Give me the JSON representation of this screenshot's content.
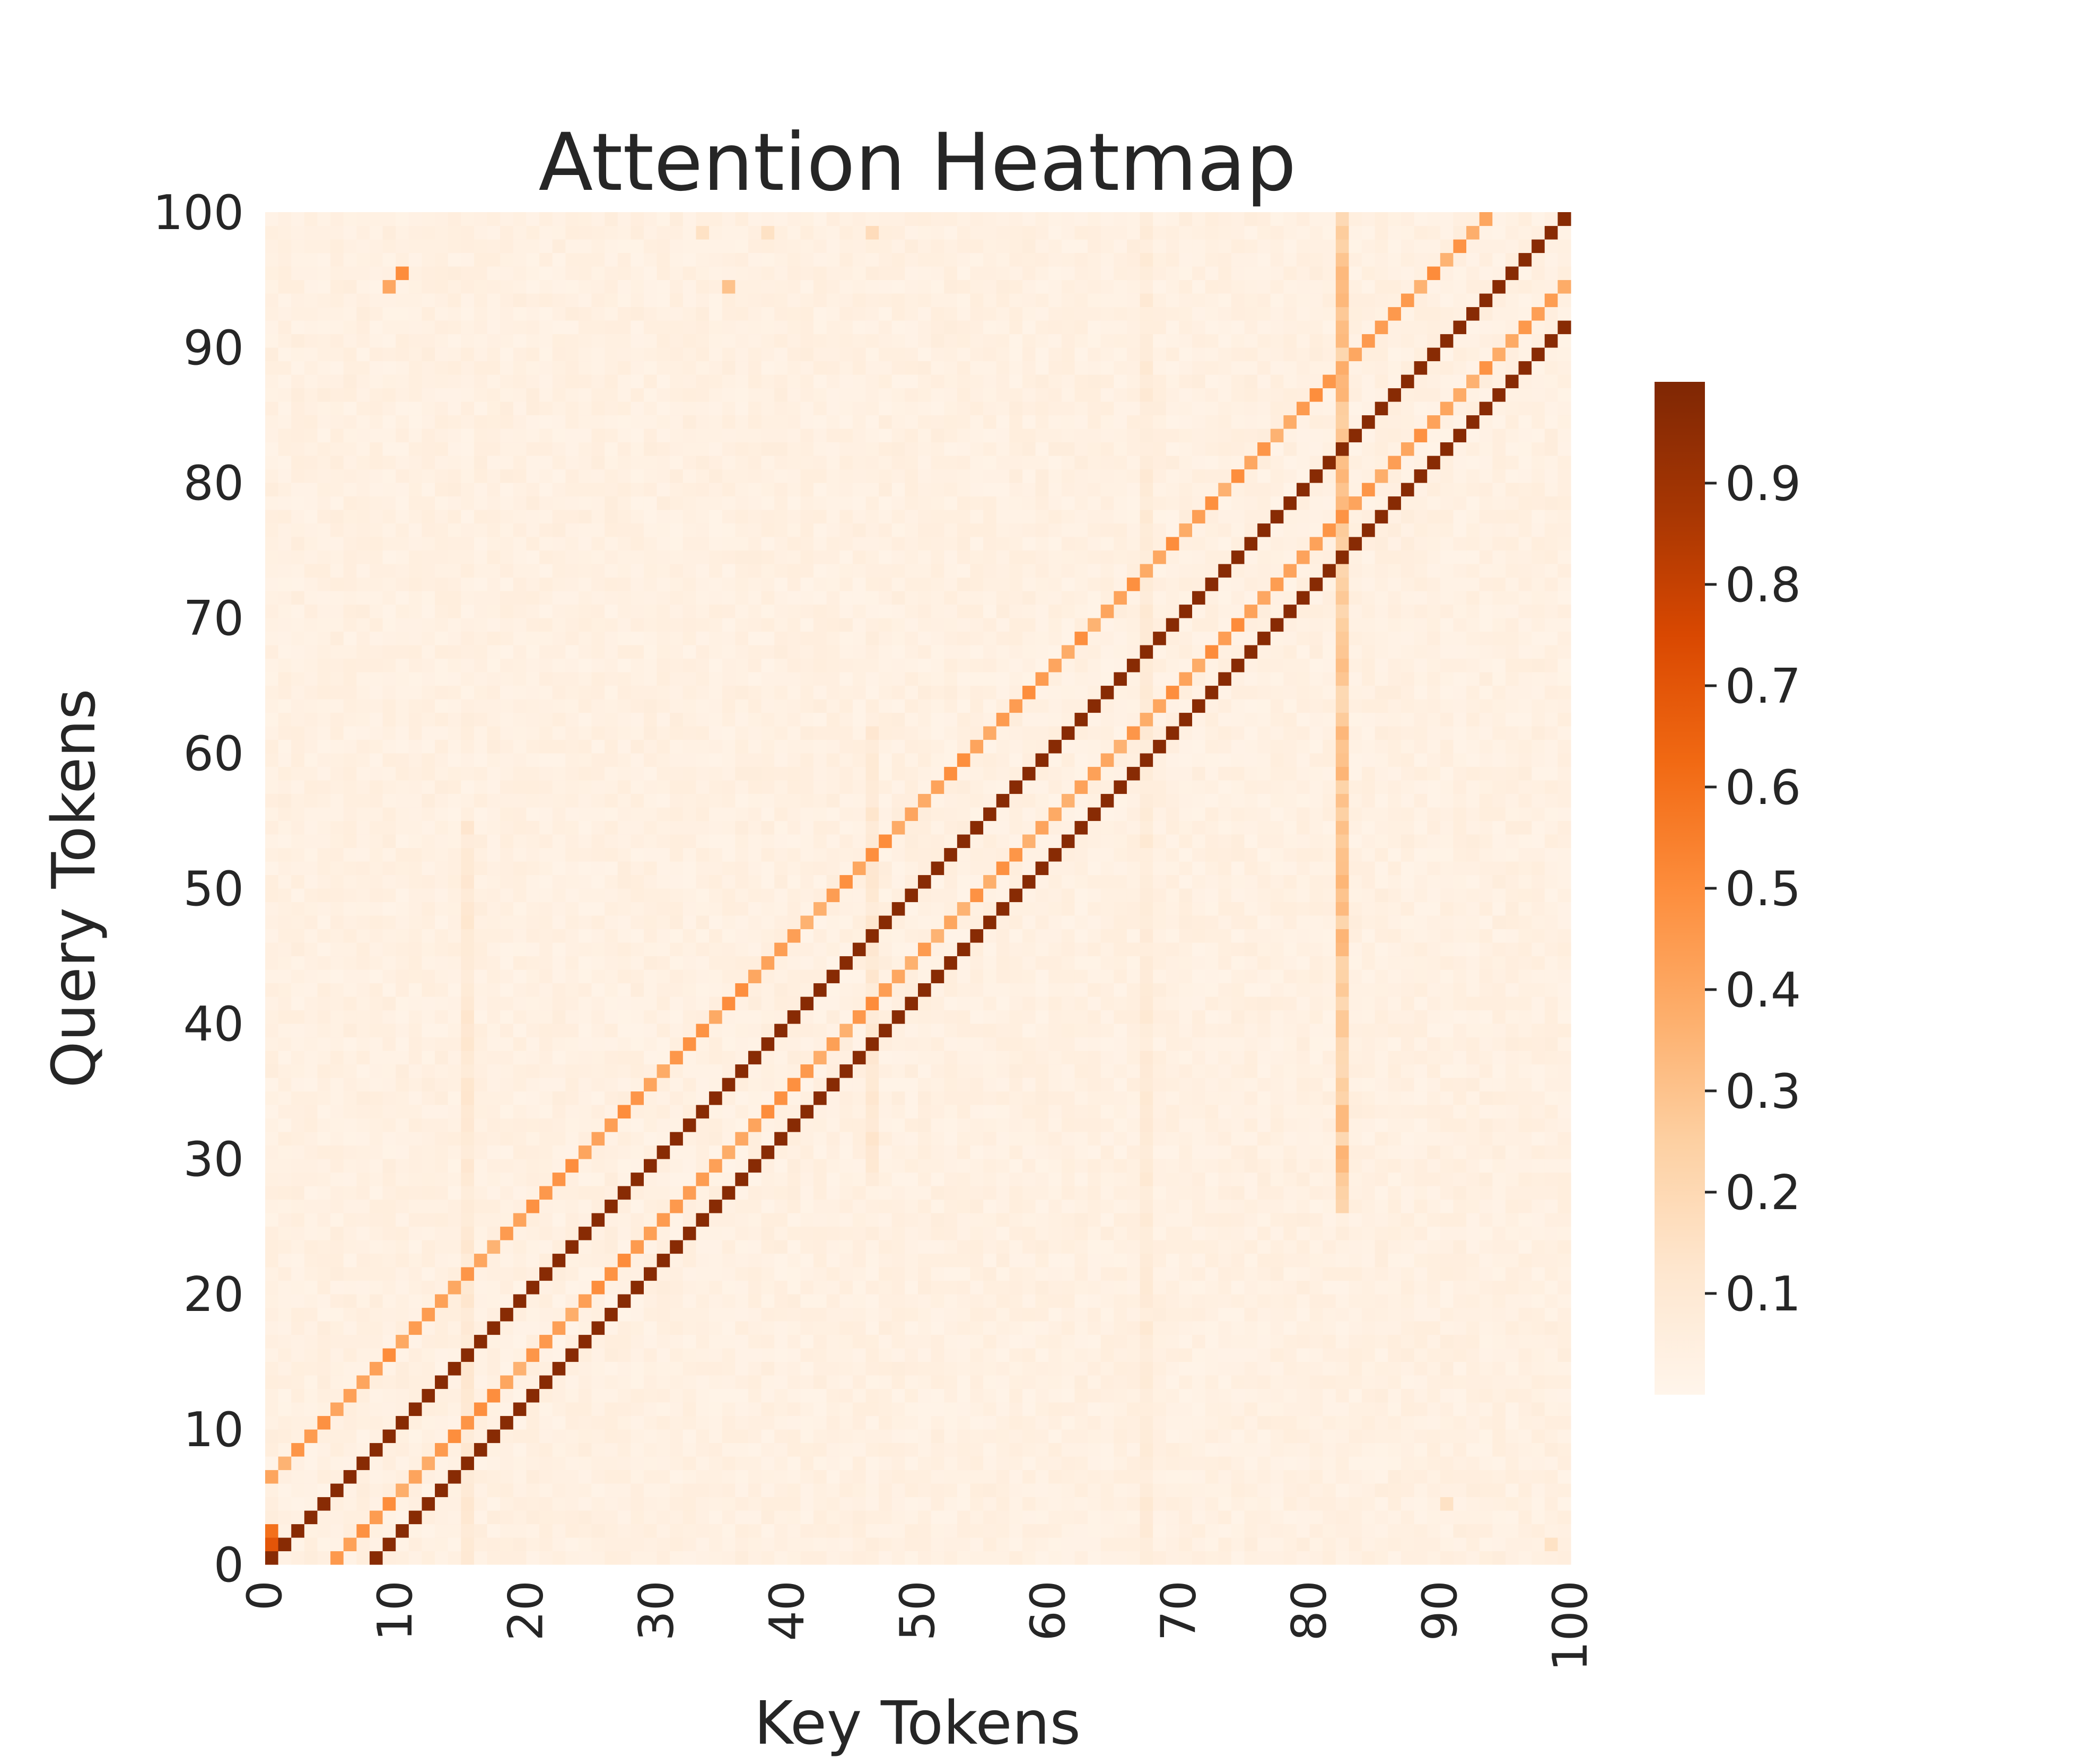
{
  "chart_data": {
    "type": "heatmap",
    "title": "Attention Heatmap",
    "xlabel": "Key Tokens",
    "ylabel": "Query Tokens",
    "x_range": [
      0,
      100
    ],
    "y_range": [
      0,
      100
    ],
    "grid_size": 100,
    "x_ticks": [
      "0",
      "10",
      "20",
      "30",
      "40",
      "50",
      "60",
      "70",
      "80",
      "90",
      "100"
    ],
    "y_ticks": [
      "0",
      "10",
      "20",
      "30",
      "40",
      "50",
      "60",
      "70",
      "80",
      "90",
      "100"
    ],
    "colormap": "Oranges",
    "colorbar": {
      "ticks": [
        "0.1",
        "0.2",
        "0.3",
        "0.4",
        "0.5",
        "0.6",
        "0.7",
        "0.8",
        "0.9"
      ],
      "range": [
        0.0,
        1.0
      ]
    },
    "background_level": 0.04,
    "diagonal_bands": [
      {
        "offset": 0,
        "value": 0.97
      },
      {
        "offset": -8,
        "value": 0.97
      },
      {
        "offset": 6,
        "value": 0.42
      },
      {
        "offset": -5,
        "value": 0.42
      }
    ],
    "vertical_streaks": [
      {
        "column": 15,
        "from_row": 0,
        "to_row": 55,
        "value": 0.1
      },
      {
        "column": 46,
        "from_row": 28,
        "to_row": 62,
        "value": 0.1
      },
      {
        "column": 67,
        "from_row": 0,
        "to_row": 100,
        "value": 0.08
      },
      {
        "column": 82,
        "from_row": 26,
        "to_row": 100,
        "value": 0.28
      }
    ],
    "isolated_cells": [
      {
        "col": 9,
        "row": 94,
        "value": 0.4
      },
      {
        "col": 10,
        "row": 95,
        "value": 0.5
      },
      {
        "col": 35,
        "row": 94,
        "value": 0.3
      },
      {
        "col": 33,
        "row": 98,
        "value": 0.15
      },
      {
        "col": 38,
        "row": 98,
        "value": 0.15
      },
      {
        "col": 46,
        "row": 98,
        "value": 0.18
      },
      {
        "col": 90,
        "row": 4,
        "value": 0.15
      },
      {
        "col": 98,
        "row": 1,
        "value": 0.15
      },
      {
        "col": 0,
        "row": 0,
        "value": 0.95
      },
      {
        "col": 0,
        "row": 1,
        "value": 0.7
      },
      {
        "col": 0,
        "row": 2,
        "value": 0.6
      }
    ]
  }
}
